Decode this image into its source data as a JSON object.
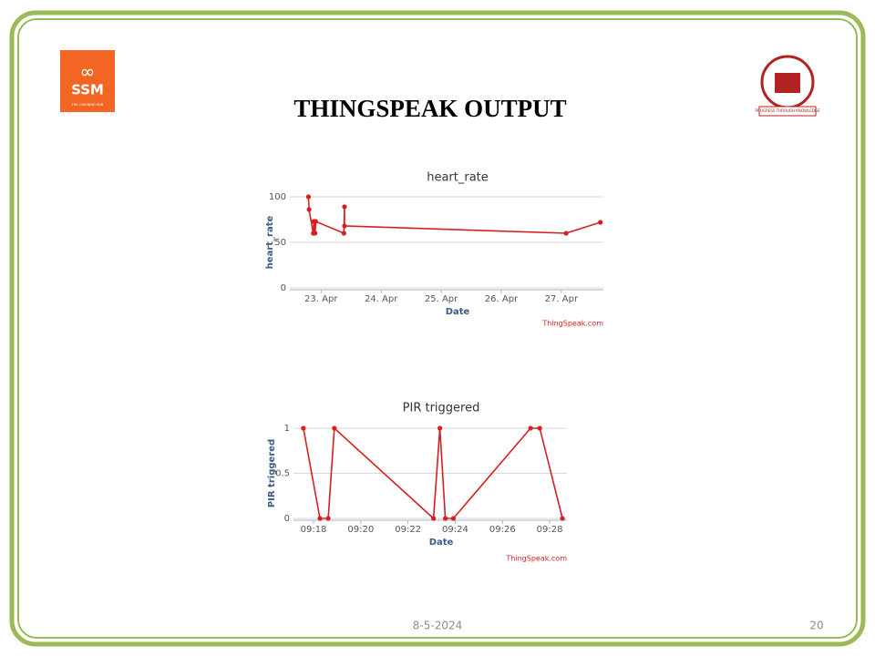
{
  "slide": {
    "title": "THINGSPEAK OUTPUT",
    "date": "8-5-2024",
    "page": "20",
    "logo_left": "SSM",
    "logo_left_sub": "THE LEARNING HUB",
    "logo_right_sub": "PROGRESS THROUGH KNOWLEDGE"
  },
  "chart_data": [
    {
      "type": "line",
      "title": "heart_rate",
      "xlabel": "Date",
      "ylabel": "heart_rate",
      "credit": "ThingSpeak.com",
      "color": "#d62020",
      "grid": true,
      "x": [
        22.79,
        22.8,
        22.87,
        22.88,
        22.9,
        22.91,
        23.38,
        23.39,
        23.39,
        27.08,
        27.65
      ],
      "values": [
        100,
        86,
        60,
        73,
        60,
        73,
        60,
        89,
        68,
        60,
        72
      ],
      "xlim": [
        22.48,
        27.7
      ],
      "xticks": [
        {
          "value": 23,
          "label": "23. Apr"
        },
        {
          "value": 24,
          "label": "24. Apr"
        },
        {
          "value": 25,
          "label": "25. Apr"
        },
        {
          "value": 26,
          "label": "26. Apr"
        },
        {
          "value": 27,
          "label": "27. Apr"
        }
      ],
      "ylim": [
        0,
        100
      ],
      "yticks": [
        0,
        50,
        100
      ]
    },
    {
      "type": "line",
      "title": "PIR triggered",
      "xlabel": "Date",
      "ylabel": "PIR triggered",
      "credit": "ThingSpeak.com",
      "color": "#d62020",
      "grid": true,
      "x": [
        17.57,
        18.27,
        18.62,
        18.88,
        23.08,
        23.35,
        23.58,
        23.92,
        27.19,
        27.58,
        28.54
      ],
      "values": [
        1,
        0,
        0,
        1,
        0,
        1,
        0,
        0,
        1,
        1,
        0
      ],
      "xlim": [
        17.15,
        28.73
      ],
      "xticks": [
        {
          "value": 18,
          "label": "09:18"
        },
        {
          "value": 20,
          "label": "09:20"
        },
        {
          "value": 22,
          "label": "09:22"
        },
        {
          "value": 24,
          "label": "09:24"
        },
        {
          "value": 26,
          "label": "09:26"
        },
        {
          "value": 28,
          "label": "09:28"
        }
      ],
      "ylim": [
        0,
        1
      ],
      "yticks": [
        0,
        0.5,
        1
      ]
    }
  ]
}
